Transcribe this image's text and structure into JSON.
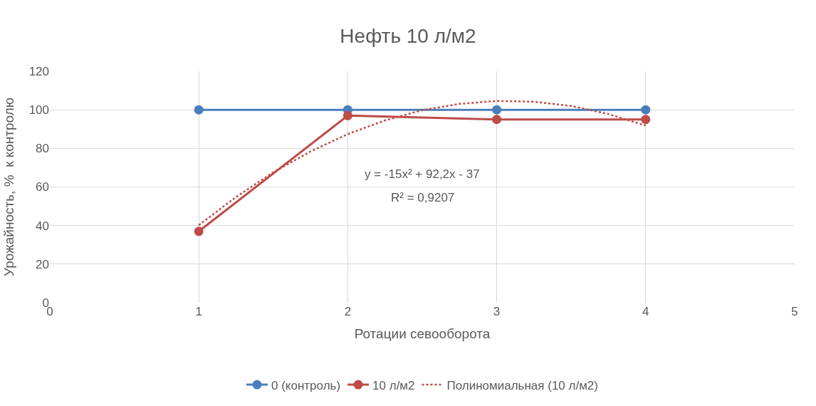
{
  "chart_data": {
    "type": "line",
    "title": "Нефть 10 л/м2",
    "xlabel": "Ротации севооборота",
    "ylabel": "Урожайность, %  к контролю",
    "xlim": [
      0,
      5
    ],
    "xticks": [
      0,
      1,
      2,
      3,
      4,
      5
    ],
    "ylim": [
      0,
      120
    ],
    "yticks": [
      0,
      20,
      40,
      60,
      80,
      100,
      120
    ],
    "grid": true,
    "legend": "bottom",
    "marker": "circle",
    "line_style": "solid",
    "annotations": [
      "y = -15x² + 92,2x - 37",
      "R² = 0,9207"
    ],
    "series": [
      {
        "name": "0 (контроль)",
        "color": "#4a7ebb",
        "x": [
          1,
          2,
          3,
          4
        ],
        "values": [
          100,
          100,
          100,
          100
        ]
      },
      {
        "name": "10 л/м2",
        "color": "#be4b48",
        "x": [
          1,
          2,
          3,
          4
        ],
        "values": [
          37,
          97,
          95,
          95
        ]
      },
      {
        "name": "Полиномиальная (10 л/м2)",
        "color": "#be4b48",
        "marker": "none",
        "line_style": "dotted",
        "x": [
          1,
          1.25,
          1.5,
          1.75,
          2,
          2.25,
          2.5,
          2.75,
          3,
          3.25,
          3.5,
          3.75,
          4
        ],
        "values": [
          40.2,
          54.8,
          67.6,
          78.4,
          87.4,
          94.5,
          99.8,
          103.1,
          104.6,
          104.2,
          102.0,
          97.8,
          91.8
        ]
      }
    ]
  }
}
